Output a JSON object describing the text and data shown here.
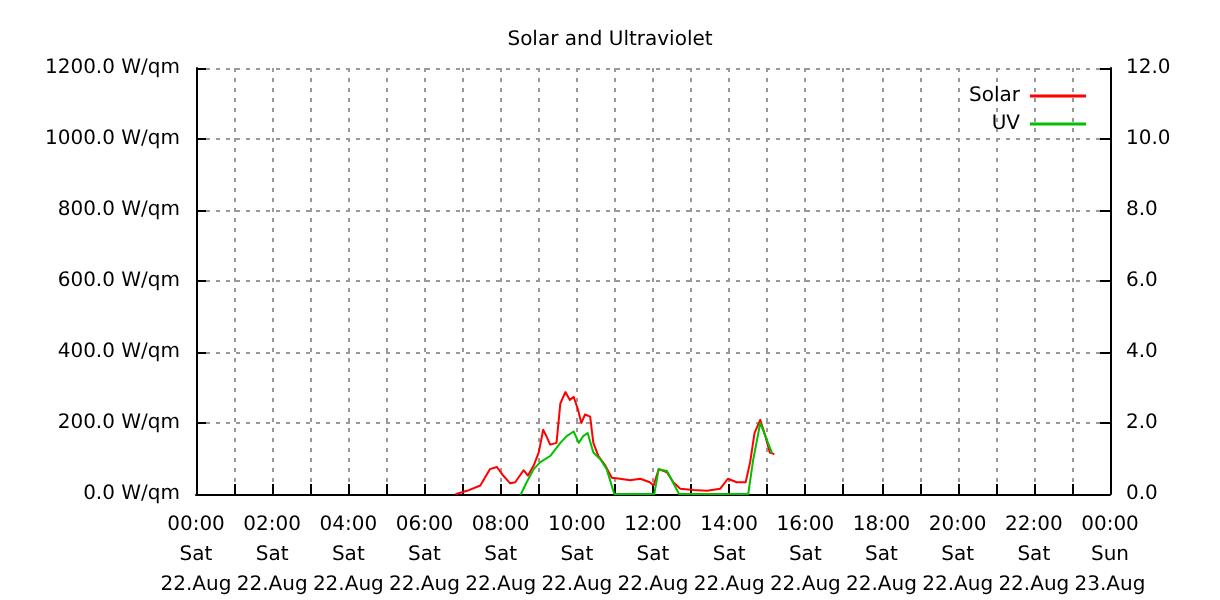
{
  "chart_data": {
    "type": "line",
    "title": "Solar and Ultraviolet",
    "xlim": [
      "--08-22T00:00",
      "--08-23T00:00"
    ],
    "xticks": [
      {
        "value": "--08-22T00:00",
        "label": "00:00\nSat\n22.Aug"
      },
      {
        "value": "--08-22T01:00",
        "label": null
      },
      {
        "value": "--08-22T02:00",
        "label": "02:00\nSat\n22.Aug"
      },
      {
        "value": "--08-22T03:00",
        "label": null
      },
      {
        "value": "--08-22T04:00",
        "label": "04:00\nSat\n22.Aug"
      },
      {
        "value": "--08-22T05:00",
        "label": null
      },
      {
        "value": "--08-22T06:00",
        "label": "06:00\nSat\n22.Aug"
      },
      {
        "value": "--08-22T07:00",
        "label": null
      },
      {
        "value": "--08-22T08:00",
        "label": "08:00\nSat\n22.Aug"
      },
      {
        "value": "--08-22T09:00",
        "label": null
      },
      {
        "value": "--08-22T10:00",
        "label": "10:00\nSat\n22.Aug"
      },
      {
        "value": "--08-22T11:00",
        "label": null
      },
      {
        "value": "--08-22T12:00",
        "label": "12:00\nSat\n22.Aug"
      },
      {
        "value": "--08-22T13:00",
        "label": null
      },
      {
        "value": "--08-22T14:00",
        "label": "14:00\nSat\n22.Aug"
      },
      {
        "value": "--08-22T15:00",
        "label": null
      },
      {
        "value": "--08-22T16:00",
        "label": "16:00\nSat\n22.Aug"
      },
      {
        "value": "--08-22T17:00",
        "label": null
      },
      {
        "value": "--08-22T18:00",
        "label": "18:00\nSat\n22.Aug"
      },
      {
        "value": "--08-22T19:00",
        "label": null
      },
      {
        "value": "--08-22T20:00",
        "label": "20:00\nSat\n22.Aug"
      },
      {
        "value": "--08-22T21:00",
        "label": null
      },
      {
        "value": "--08-22T22:00",
        "label": "22:00\nSat\n22.Aug"
      },
      {
        "value": "--08-22T23:00",
        "label": null
      },
      {
        "value": "--08-23T00:00",
        "label": "00:00\nSun\n23.Aug"
      }
    ],
    "ylim": [
      0,
      1200
    ],
    "yticks": [
      {
        "value": 0,
        "label": "0.0 W/qm"
      },
      {
        "value": 200,
        "label": "200.0 W/qm"
      },
      {
        "value": 400,
        "label": "400.0 W/qm"
      },
      {
        "value": 600,
        "label": "600.0 W/qm"
      },
      {
        "value": 800,
        "label": "800.0 W/qm"
      },
      {
        "value": 1000,
        "label": "1000.0 W/qm"
      },
      {
        "value": 1200,
        "label": "1200.0 W/qm"
      }
    ],
    "y2lim": [
      0,
      12
    ],
    "y2ticks": [
      {
        "value": 0,
        "label": "0.0"
      },
      {
        "value": 2,
        "label": "2.0"
      },
      {
        "value": 4,
        "label": "4.0"
      },
      {
        "value": 6,
        "label": "6.0"
      },
      {
        "value": 8,
        "label": "8.0"
      },
      {
        "value": 10,
        "label": "10.0"
      },
      {
        "value": 12,
        "label": "12.0"
      }
    ],
    "grid": true,
    "legend": "top right",
    "marker": "none",
    "line_style": "solid",
    "series": [
      {
        "name": "Solar",
        "color": "#ff0000",
        "x": [
          "--08-22T06:50",
          "--08-22T07:07",
          "--08-22T07:28",
          "--08-22T07:43",
          "--08-22T07:54",
          "--08-22T08:04",
          "--08-22T08:15",
          "--08-22T08:23",
          "--08-22T08:36",
          "--08-22T08:43",
          "--08-22T08:52",
          "--08-22T09:00",
          "--08-22T09:07",
          "--08-22T09:12",
          "--08-22T09:18",
          "--08-22T09:28",
          "--08-22T09:34",
          "--08-22T09:42",
          "--08-22T09:49",
          "--08-22T09:55",
          "--08-22T10:02",
          "--08-22T10:07",
          "--08-22T10:13",
          "--08-22T10:21",
          "--08-22T10:26",
          "--08-22T10:34",
          "--08-22T10:45",
          "--08-22T10:55",
          "--08-22T11:08",
          "--08-22T11:24",
          "--08-22T11:40",
          "--08-22T11:55",
          "--08-22T12:01",
          "--08-22T12:09",
          "--08-22T12:22",
          "--08-22T12:32",
          "--08-22T12:43",
          "--08-22T13:04",
          "--08-22T13:25",
          "--08-22T13:46",
          "--08-22T13:58",
          "--08-22T14:12",
          "--08-22T14:26",
          "--08-22T14:33",
          "--08-22T14:40",
          "--08-22T14:49",
          "--08-22T14:57",
          "--08-22T15:04",
          "--08-22T15:10"
        ],
        "values": [
          0,
          9,
          24,
          70,
          76,
          52,
          30,
          33,
          67,
          52,
          80,
          117,
          181,
          163,
          139,
          144,
          255,
          287,
          265,
          274,
          237,
          200,
          224,
          218,
          144,
          107,
          80,
          46,
          43,
          39,
          43,
          33,
          24,
          70,
          61,
          33,
          15,
          11,
          9,
          15,
          43,
          33,
          33,
          89,
          172,
          209,
          163,
          117,
          113
        ]
      },
      {
        "name": "UV",
        "color": "#00c000",
        "axis": "y2",
        "x": [
          "--08-22T08:32",
          "--08-22T08:41",
          "--08-22T08:52",
          "--08-22T09:02",
          "--08-22T09:18",
          "--08-22T09:34",
          "--08-22T09:44",
          "--08-22T09:55",
          "--08-22T10:03",
          "--08-22T10:10",
          "--08-22T10:17",
          "--08-22T10:26",
          "--08-22T10:37",
          "--08-22T10:47",
          "--08-22T10:59",
          "--08-22T12:02",
          "--08-22T12:09",
          "--08-22T12:22",
          "--08-22T12:41",
          "--08-22T13:54",
          "--08-22T14:30",
          "--08-22T14:38",
          "--08-22T14:49",
          "--08-22T14:59",
          "--08-22T15:07"
        ],
        "values": [
          0,
          0.33,
          0.7,
          0.89,
          1.07,
          1.44,
          1.63,
          1.76,
          1.44,
          1.63,
          1.72,
          1.17,
          0.98,
          0.7,
          0,
          0,
          0.7,
          0.65,
          0,
          0,
          0,
          0.98,
          2.0,
          1.54,
          1.17
        ]
      }
    ]
  }
}
